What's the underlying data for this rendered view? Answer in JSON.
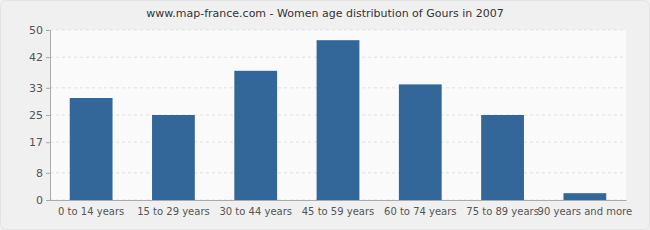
{
  "chart_data": {
    "type": "bar",
    "title": "www.map-france.com - Women age distribution of Gours in 2007",
    "categories": [
      "0 to 14 years",
      "15 to 29 years",
      "30 to 44 years",
      "45 to 59 years",
      "60 to 74 years",
      "75 to 89 years",
      "90 years and more"
    ],
    "values": [
      30,
      25,
      38,
      47,
      34,
      25,
      2
    ],
    "color": "#336699",
    "ylim": [
      0,
      50
    ],
    "yticks": [
      0,
      8,
      17,
      25,
      33,
      42,
      50
    ],
    "grid": true
  }
}
